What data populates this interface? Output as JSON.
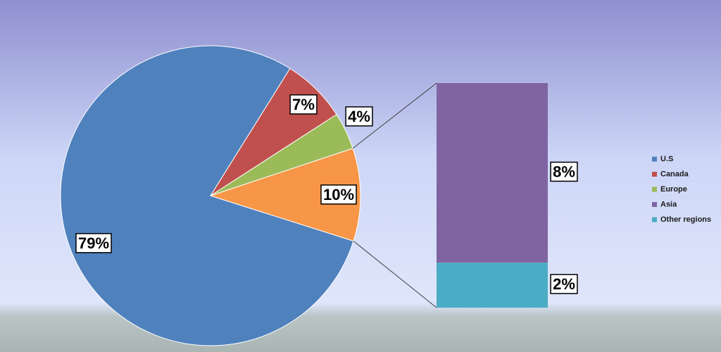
{
  "chart_data": {
    "type": "bar-of-pie",
    "categories": [
      "U.S",
      "Canada",
      "Europe",
      "Asia",
      "Other regions"
    ],
    "values": [
      79,
      7,
      4,
      8,
      2
    ],
    "value_labels": [
      "79%",
      "7%",
      "4%",
      "8%",
      "2%"
    ],
    "colors": [
      "#4f81bd",
      "#c0504d",
      "#9bbb59",
      "#8064a2",
      "#4bacc6"
    ],
    "other_value": 10,
    "other_label": "10%",
    "other_color": "#f79646",
    "legend": "right"
  }
}
